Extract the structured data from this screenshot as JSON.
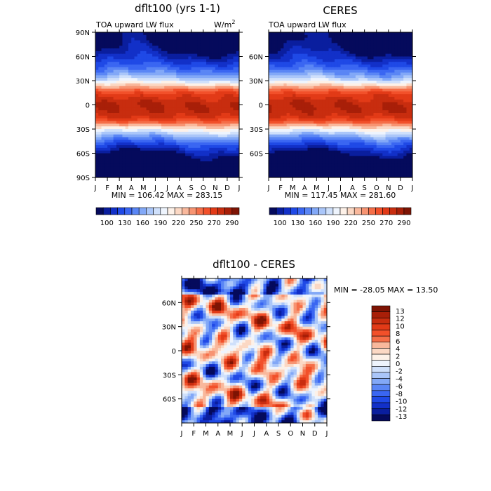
{
  "colors": {
    "blue_red_20": [
      "#050a5c",
      "#0a1e9e",
      "#1230c8",
      "#1f49e6",
      "#3a66f2",
      "#5a86f5",
      "#82a8f7",
      "#aac6f9",
      "#cfe0fb",
      "#eef4fd",
      "#fdf1e8",
      "#fbd8c4",
      "#f9b89c",
      "#f79472",
      "#f56e48",
      "#f2502a",
      "#e23a17",
      "#c82d0f",
      "#a81f08",
      "#7e1404"
    ]
  },
  "panels": {
    "left": {
      "title": "dflt100 (yrs 1-1)",
      "subtitle": "TOA upward LW flux",
      "units": "W/m",
      "units_sup": "2",
      "stats": "MIN = 106.42  MAX = 283.15"
    },
    "right": {
      "title": "CERES",
      "subtitle": "TOA upward LW flux",
      "stats": "MIN = 117.45  MAX = 281.60"
    },
    "diff": {
      "title": "dflt100 - CERES",
      "stats": "MIN = -28.05  MAX =  13.50"
    }
  },
  "chart_data": [
    {
      "type": "heatmap",
      "title": "dflt100 (yrs 1-1)",
      "subtitle": "TOA upward LW flux",
      "units": "W/m^2",
      "x": [
        "J",
        "F",
        "M",
        "A",
        "M",
        "J",
        "J",
        "A",
        "S",
        "O",
        "N",
        "D",
        "J"
      ],
      "y_ticks": [
        "90N",
        "60N",
        "30N",
        "0",
        "30S",
        "60S",
        "90S"
      ],
      "y_range": [
        -90,
        90
      ],
      "min": 106.42,
      "max": 283.15,
      "colorbar_labels": [
        "100",
        "130",
        "160",
        "190",
        "220",
        "250",
        "270",
        "290"
      ]
    },
    {
      "type": "heatmap",
      "title": "CERES",
      "subtitle": "TOA upward LW flux",
      "x": [
        "J",
        "F",
        "M",
        "A",
        "M",
        "J",
        "J",
        "A",
        "S",
        "O",
        "N",
        "D",
        "J"
      ],
      "y_ticks": [
        "60N",
        "30N",
        "0",
        "30S",
        "60S"
      ],
      "y_range": [
        -90,
        90
      ],
      "min": 117.45,
      "max": 281.6,
      "colorbar_labels": [
        "100",
        "130",
        "160",
        "190",
        "220",
        "250",
        "270",
        "290"
      ]
    },
    {
      "type": "heatmap",
      "title": "dflt100 - CERES",
      "x": [
        "J",
        "F",
        "M",
        "A",
        "M",
        "J",
        "J",
        "A",
        "S",
        "O",
        "N",
        "D",
        "J"
      ],
      "y_ticks": [
        "60N",
        "30N",
        "0",
        "30S",
        "60S"
      ],
      "y_range": [
        -90,
        90
      ],
      "min": -28.05,
      "max": 13.5,
      "colorbar_labels": [
        "13",
        "12",
        "10",
        "8",
        "6",
        "4",
        "2",
        "0",
        "-2",
        "-4",
        "-6",
        "-8",
        "-10",
        "-12",
        "-13"
      ]
    }
  ]
}
